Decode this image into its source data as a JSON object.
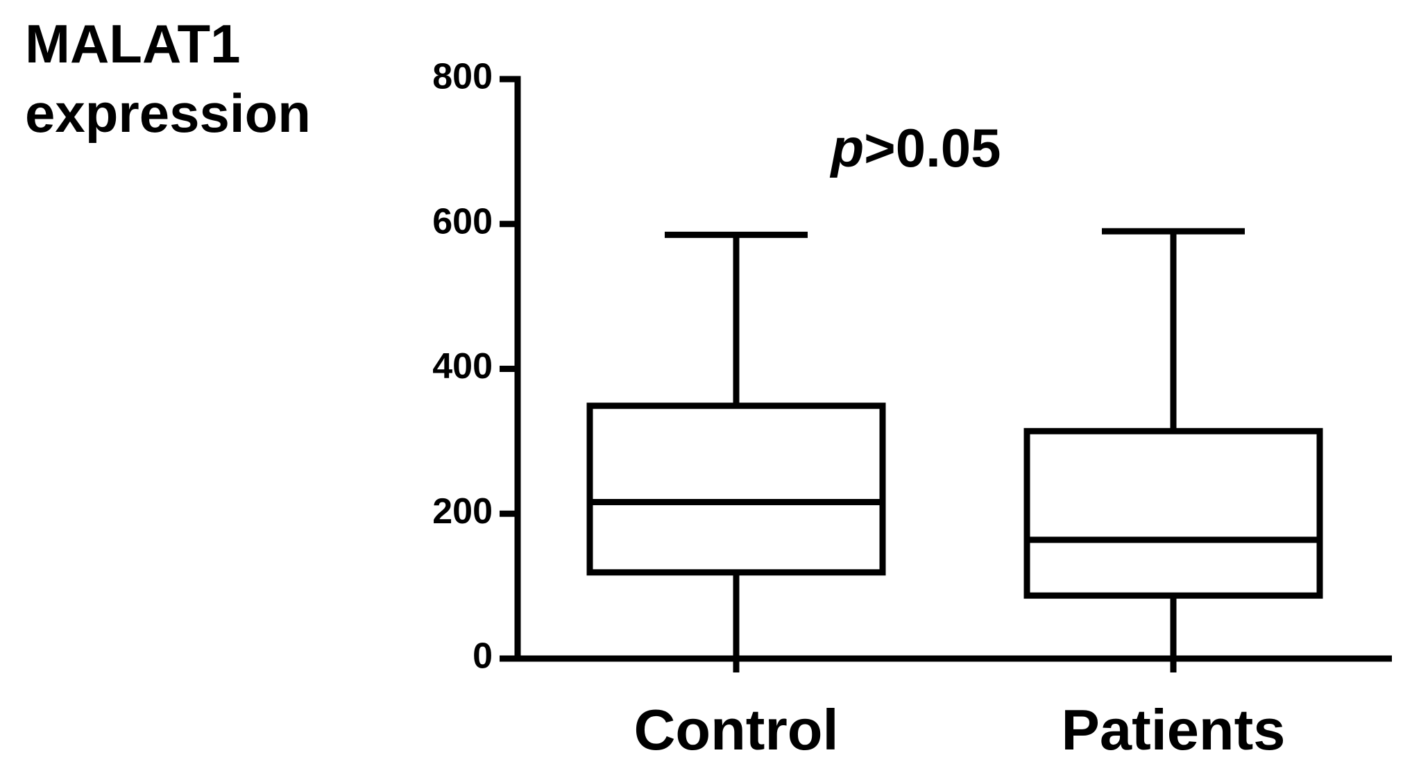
{
  "chart_data": {
    "type": "box",
    "ylabel": [
      "MALAT1",
      "expression"
    ],
    "annotation": "p>0.05",
    "categories": [
      "Control",
      "Patients"
    ],
    "min": [
      2,
      2
    ],
    "q1": [
      119,
      87
    ],
    "median": [
      216,
      164
    ],
    "q3": [
      349,
      314
    ],
    "max": [
      585,
      590
    ],
    "color": "#000000",
    "ylim": [
      0,
      800
    ],
    "yticks": [
      0,
      200,
      400,
      600,
      800
    ]
  }
}
